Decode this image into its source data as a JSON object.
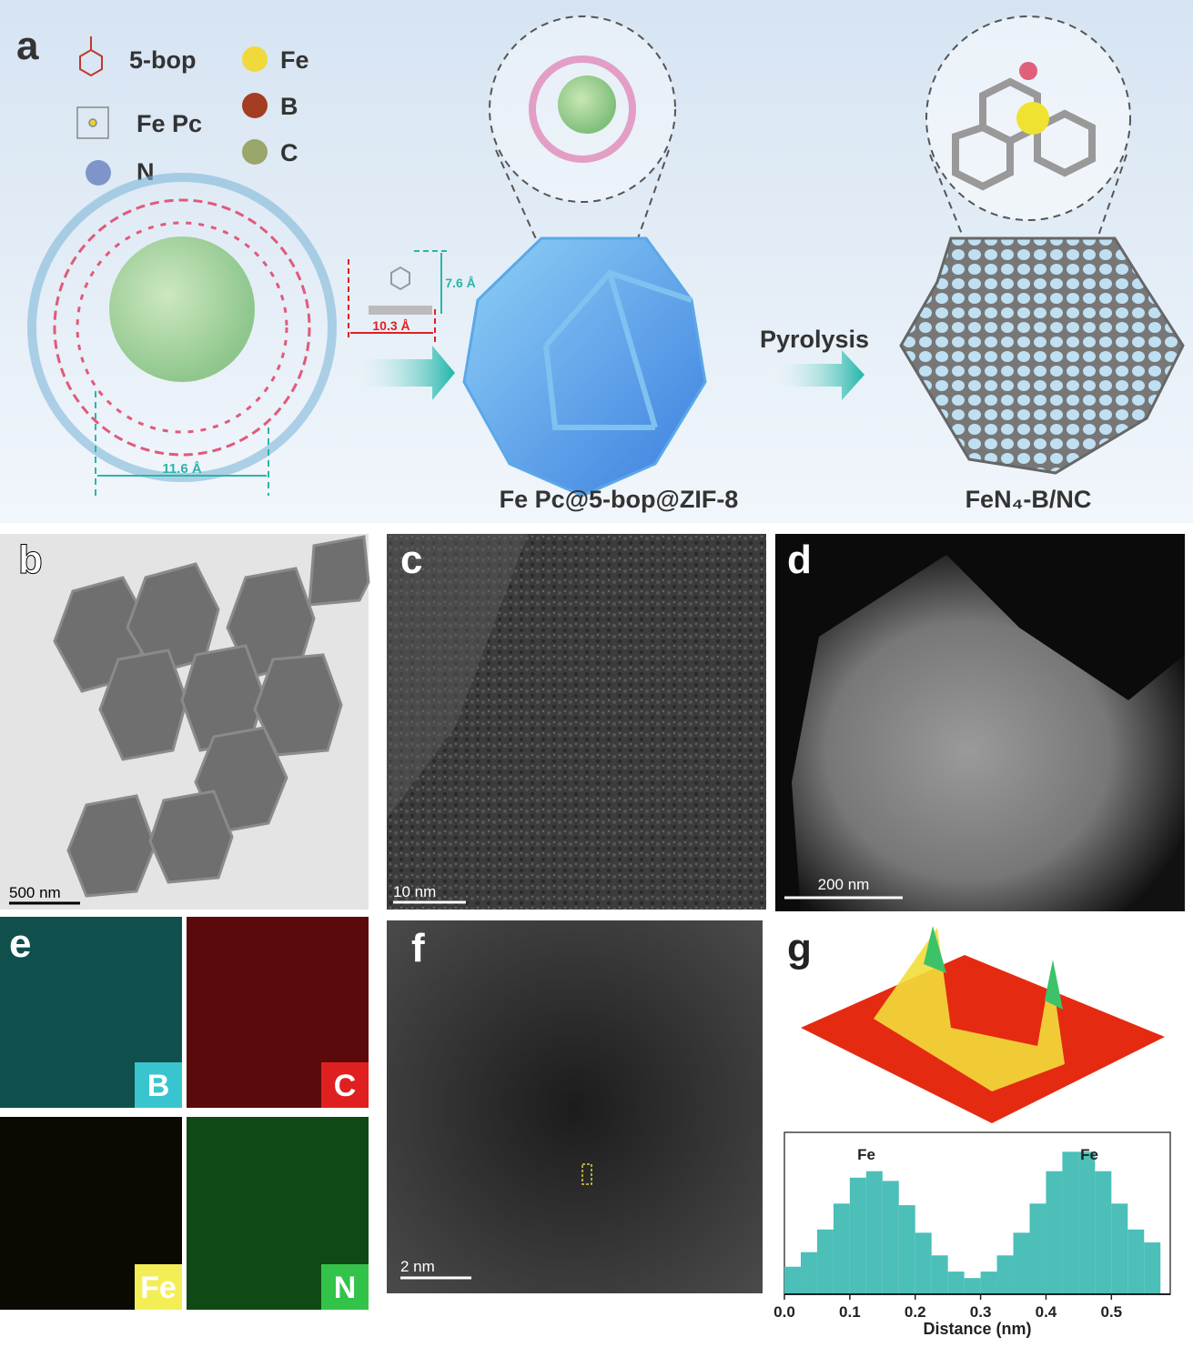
{
  "panel_a": {
    "label": "a",
    "legend": {
      "bop": "5-bop",
      "fe_pc": "Fe Pc",
      "n": "N",
      "fe": "Fe",
      "b": "B",
      "c": "C"
    },
    "dimensions": [
      "11.6 Å",
      "10.3 Å",
      "7.6 Å"
    ],
    "step": "Pyrolysis",
    "products": [
      "Fe Pc@5-bop@ZIF-8",
      "FeN₄-B/NC"
    ]
  },
  "panel_b": {
    "label": "b",
    "scale_bar": "500 nm"
  },
  "panel_c": {
    "label": "c",
    "scale_bar": "10 nm"
  },
  "panel_d": {
    "label": "d",
    "scale_bar": "200 nm"
  },
  "panel_e": {
    "label": "e",
    "maps": [
      "B",
      "C",
      "Fe",
      "N"
    ]
  },
  "panel_f": {
    "label": "f",
    "scale_bar": "2 nm"
  },
  "panel_g": {
    "label": "g"
  },
  "chart_data": {
    "type": "histogram",
    "color": "#4bbfb8",
    "bins": [
      0,
      0.025,
      0.05,
      0.075,
      0.1,
      0.125,
      0.15,
      0.175,
      0.2,
      0.225,
      0.25,
      0.275,
      0.3,
      0.325,
      0.35,
      0.375,
      0.4,
      0.425,
      0.45,
      0.475,
      0.5,
      0.525,
      0.55,
      0.575
    ],
    "values": [
      17,
      26,
      40,
      56,
      72,
      76,
      70,
      55,
      38,
      24,
      14,
      10,
      14,
      24,
      38,
      56,
      76,
      88,
      88,
      76,
      56,
      40,
      32
    ],
    "xlim": [
      0,
      0.59
    ],
    "ylim": [
      0,
      100
    ],
    "xticks": [
      {
        "value": 0,
        "label": "0.0"
      },
      0.1,
      0.2,
      0.3,
      0.4,
      0.5
    ],
    "x_label": "Distance (nm)",
    "annotations": [
      "Fe",
      "Fe"
    ]
  }
}
